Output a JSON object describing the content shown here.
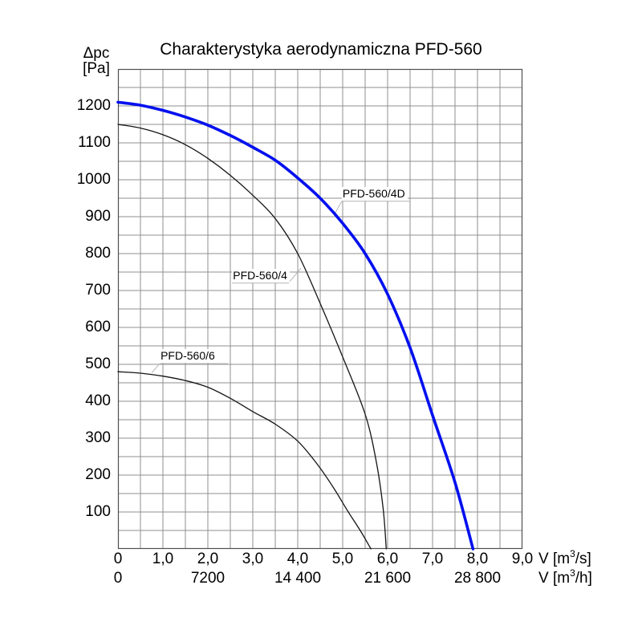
{
  "title": "Charakterystyka aerodynamiczna PFD-560",
  "y_unit": {
    "line1": "Δpc",
    "line2": "[Pa]"
  },
  "x_units": {
    "s": {
      "pre": "V [m",
      "sup": "3",
      "post": "/s]"
    },
    "h": {
      "pre": "V [m",
      "sup": "3",
      "post": "/h]"
    }
  },
  "colors": {
    "accent_blue": "#0010ee",
    "curve_black": "#141414",
    "grid": "#8f8f8f",
    "border": "#4f4f4f",
    "leader": "#b5b5b5",
    "background": "#ffffff"
  },
  "chart_data": {
    "type": "line",
    "title": "Charakterystyka aerodynamiczna PFD-560",
    "grid": "on",
    "y_axis": {
      "label": "Δpc [Pa]",
      "min": 0,
      "max": 1300,
      "grid_step": 50,
      "ticks": [
        {
          "pa": 100,
          "label": "100"
        },
        {
          "pa": 200,
          "label": "200"
        },
        {
          "pa": 300,
          "label": "300"
        },
        {
          "pa": 400,
          "label": "400"
        },
        {
          "pa": 500,
          "label": "500"
        },
        {
          "pa": 600,
          "label": "600"
        },
        {
          "pa": 700,
          "label": "700"
        },
        {
          "pa": 800,
          "label": "800"
        },
        {
          "pa": 900,
          "label": "900"
        },
        {
          "pa": 1000,
          "label": "1000"
        },
        {
          "pa": 1100,
          "label": "1100"
        },
        {
          "pa": 1200,
          "label": "1200"
        }
      ]
    },
    "x_axis": {
      "label": "V [m3/s]",
      "min": 0,
      "max": 9,
      "grid_step": 0.5,
      "ticks": [
        {
          "v": 0,
          "label": "0"
        },
        {
          "v": 1,
          "label": "1,0"
        },
        {
          "v": 2,
          "label": "2,0"
        },
        {
          "v": 3,
          "label": "3,0"
        },
        {
          "v": 4,
          "label": "4,0"
        },
        {
          "v": 5,
          "label": "5,0"
        },
        {
          "v": 6,
          "label": "6,0"
        },
        {
          "v": 7,
          "label": "7,0"
        },
        {
          "v": 8,
          "label": "8,0"
        },
        {
          "v": 9,
          "label": "9,0"
        }
      ]
    },
    "x_axis_secondary": {
      "label": "V [m3/h]",
      "ticks": [
        {
          "v": 0,
          "label": "0"
        },
        {
          "v": 2,
          "label": "7200"
        },
        {
          "v": 4,
          "label": "14 400"
        },
        {
          "v": 6,
          "label": "21 600"
        },
        {
          "v": 8,
          "label": "28 800"
        }
      ]
    },
    "series": [
      {
        "name": "PFD-560/4D",
        "color_key": "accent_blue",
        "stroke_width": 3.6,
        "points": [
          [
            0,
            1210
          ],
          [
            0.5,
            1202
          ],
          [
            1,
            1188
          ],
          [
            1.5,
            1170
          ],
          [
            2,
            1148
          ],
          [
            2.5,
            1120
          ],
          [
            3,
            1088
          ],
          [
            3.5,
            1053
          ],
          [
            4,
            1005
          ],
          [
            4.5,
            950
          ],
          [
            5,
            882
          ],
          [
            5.5,
            800
          ],
          [
            6,
            690
          ],
          [
            6.5,
            545
          ],
          [
            7,
            362
          ],
          [
            7.5,
            180
          ],
          [
            7.9,
            0
          ]
        ]
      },
      {
        "name": "PFD-560/4",
        "color_key": "curve_black",
        "stroke_width": 1.3,
        "points": [
          [
            0,
            1150
          ],
          [
            0.5,
            1140
          ],
          [
            1,
            1122
          ],
          [
            1.5,
            1095
          ],
          [
            2,
            1058
          ],
          [
            2.5,
            1012
          ],
          [
            3,
            958
          ],
          [
            3.5,
            895
          ],
          [
            4,
            800
          ],
          [
            4.5,
            665
          ],
          [
            5,
            520
          ],
          [
            5.5,
            365
          ],
          [
            5.75,
            235
          ],
          [
            5.9,
            110
          ],
          [
            5.97,
            0
          ]
        ]
      },
      {
        "name": "PFD-560/6",
        "color_key": "curve_black",
        "stroke_width": 1.3,
        "points": [
          [
            0,
            480
          ],
          [
            0.5,
            476
          ],
          [
            1,
            468
          ],
          [
            1.5,
            456
          ],
          [
            2,
            438
          ],
          [
            2.5,
            408
          ],
          [
            3,
            372
          ],
          [
            3.5,
            338
          ],
          [
            4,
            292
          ],
          [
            4.4,
            235
          ],
          [
            4.8,
            165
          ],
          [
            5.1,
            105
          ],
          [
            5.4,
            48
          ],
          [
            5.63,
            0
          ]
        ]
      }
    ],
    "annotations": [
      {
        "text": "PFD-560/4D",
        "underline_v1": 4.98,
        "underline_v2": 6.5,
        "underline_pa": 942,
        "attach_v": 4.82,
        "attach_pa": 907,
        "attach_from": "start"
      },
      {
        "text": "PFD-560/4",
        "underline_v1": 2.54,
        "underline_v2": 3.79,
        "underline_pa": 720,
        "attach_v": 4.07,
        "attach_pa": 760,
        "attach_from": "end"
      },
      {
        "text": "PFD-560/6",
        "underline_v1": 0.93,
        "underline_v2": 2.45,
        "underline_pa": 502,
        "attach_v": 0.75,
        "attach_pa": 477,
        "attach_from": "start"
      }
    ]
  }
}
